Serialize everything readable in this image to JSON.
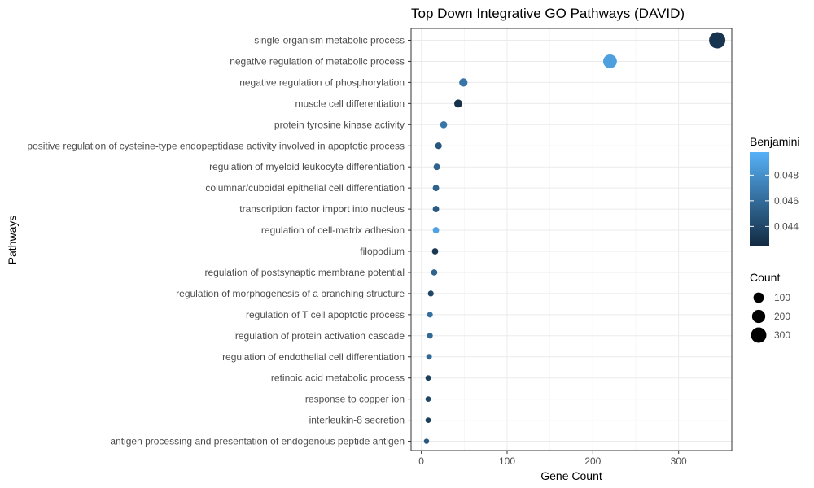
{
  "chart_data": {
    "type": "scatter",
    "title": "Top Down Integrative GO Pathways (DAVID)",
    "xlabel": "Gene Count",
    "ylabel": "Pathways",
    "xlim": [
      -12,
      362
    ],
    "xticks": [
      0,
      100,
      200,
      300
    ],
    "grid": true,
    "categories": [
      "single-organism metabolic process",
      "negative regulation of metabolic process",
      "negative regulation of phosphorylation",
      "muscle cell differentiation",
      "protein tyrosine kinase activity",
      "positive regulation of cysteine-type endopeptidase activity involved in apoptotic process",
      "regulation of myeloid leukocyte differentiation",
      "columnar/cuboidal epithelial cell differentiation",
      "transcription factor import into nucleus",
      "regulation of cell-matrix adhesion",
      "filopodium",
      "regulation of postsynaptic membrane potential",
      "regulation of morphogenesis of a branching structure",
      "regulation of T cell apoptotic process",
      "regulation of protein activation cascade",
      "regulation of endothelial cell differentiation",
      "retinoic acid metabolic process",
      "response to copper ion",
      "interleukin-8 secretion",
      "antigen processing and presentation of endogenous peptide antigen"
    ],
    "x": [
      345,
      220,
      49,
      43,
      26,
      20,
      18,
      17,
      17,
      17,
      16,
      15,
      11,
      10,
      10,
      9,
      8,
      8,
      8,
      6
    ],
    "benjamini": [
      0.043,
      0.0488,
      0.0465,
      0.0428,
      0.0466,
      0.0448,
      0.0455,
      0.0455,
      0.045,
      0.049,
      0.0432,
      0.0455,
      0.044,
      0.0462,
      0.0458,
      0.0458,
      0.0436,
      0.044,
      0.0436,
      0.045
    ],
    "color_legend": {
      "title": "Benjamini",
      "ticks": [
        0.044,
        0.046,
        0.048
      ],
      "range": [
        0.0425,
        0.0498
      ],
      "low_color": "#132b43",
      "high_color": "#56b1f7",
      "placement": "right"
    },
    "size_legend": {
      "title": "Count",
      "values": [
        100,
        200,
        300
      ],
      "placement": "right"
    }
  }
}
